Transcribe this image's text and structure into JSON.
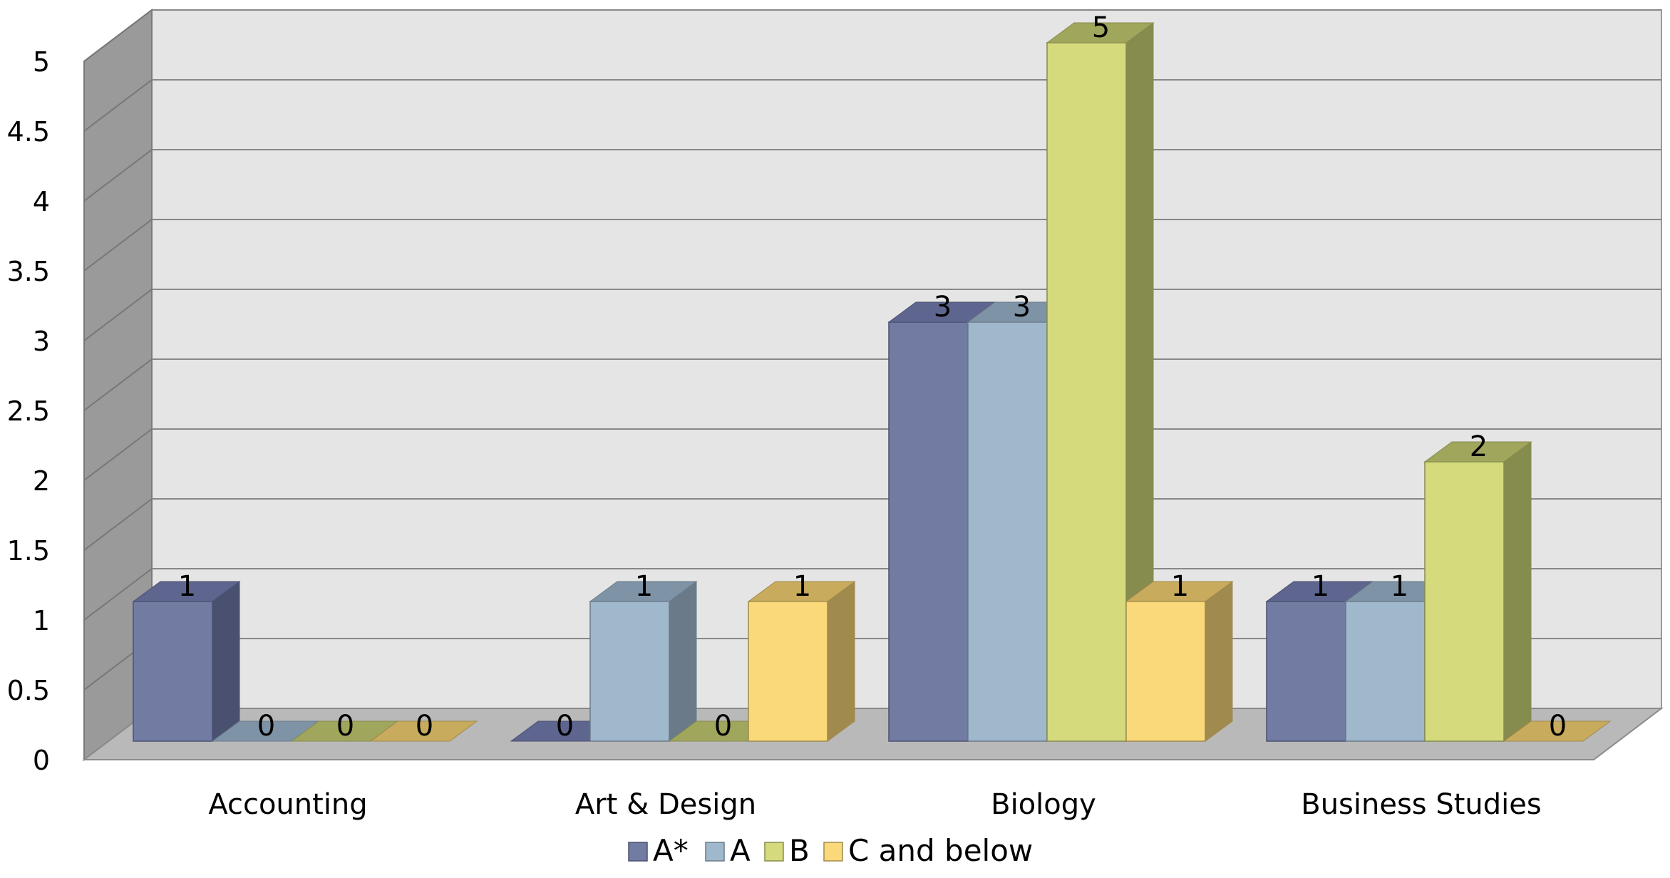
{
  "chart_data": {
    "type": "bar",
    "style": "3d-clustered-column",
    "categories": [
      "Accounting",
      "Art & Design",
      "Biology",
      "Business Studies"
    ],
    "series": [
      {
        "name": "A*",
        "values": [
          1,
          0,
          3,
          1
        ],
        "color": "#727ca3",
        "side": "#4a5070",
        "top": "#5e6690"
      },
      {
        "name": "A",
        "values": [
          0,
          1,
          3,
          1
        ],
        "color": "#9fb8cc",
        "side": "#6a7a88",
        "top": "#7f93a6"
      },
      {
        "name": "B",
        "values": [
          0,
          0,
          5,
          2
        ],
        "color": "#d5db7d",
        "side": "#868b4e",
        "top": "#a0a65c"
      },
      {
        "name": "C and below",
        "values": [
          0,
          1,
          1,
          0
        ],
        "color": "#fad97a",
        "side": "#a08a4e",
        "top": "#c8ab5c"
      }
    ],
    "ylim": [
      0,
      5
    ],
    "yticks": [
      "0",
      "0.5",
      "1",
      "1.5",
      "2",
      "2.5",
      "3",
      "3.5",
      "4",
      "4.5",
      "5"
    ],
    "data_labels": true,
    "grid": true,
    "legend": "bottom",
    "colors": {
      "wall": "#e5e5e5",
      "floor": "#b9b9b9",
      "side_wall": "#9a9a9a",
      "grid": "#888888"
    }
  }
}
